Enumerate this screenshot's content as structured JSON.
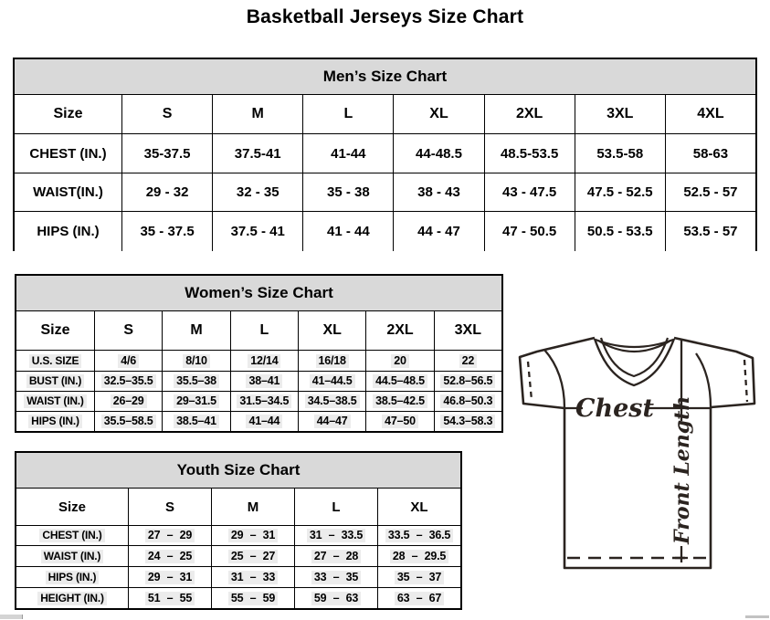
{
  "page": {
    "title": "Basketball Jerseys Size Chart"
  },
  "mens": {
    "title": "Men’s Size Chart",
    "size_label": "Size",
    "sizes": [
      "S",
      "M",
      "L",
      "XL",
      "2XL",
      "3XL",
      "4XL"
    ],
    "rows": [
      {
        "label": "CHEST (IN.)",
        "values": [
          "35-37.5",
          "37.5-41",
          "41-44",
          "44-48.5",
          "48.5-53.5",
          "53.5-58",
          "58-63"
        ]
      },
      {
        "label": "WAIST(IN.)",
        "values": [
          "29 - 32",
          "32 - 35",
          "35 - 38",
          "38 - 43",
          "43 - 47.5",
          "47.5 - 52.5",
          "52.5 - 57"
        ]
      },
      {
        "label": "HIPS (IN.)",
        "values": [
          "35 - 37.5",
          "37.5 - 41",
          "41 - 44",
          "44 - 47",
          "47 - 50.5",
          "50.5 - 53.5",
          "53.5 - 57"
        ]
      }
    ]
  },
  "womens": {
    "title": "Women’s Size Chart",
    "size_label": "Size",
    "sizes": [
      "S",
      "M",
      "L",
      "XL",
      "2XL",
      "3XL"
    ],
    "rows": [
      {
        "label": "U.S. SIZE",
        "values": [
          "4/6",
          "8/10",
          "12/14",
          "16/18",
          "20",
          "22"
        ]
      },
      {
        "label": "BUST (IN.)",
        "values": [
          "32.5–35.5",
          "35.5–38",
          "38–41",
          "41–44.5",
          "44.5–48.5",
          "52.8–56.5"
        ]
      },
      {
        "label": "WAIST (IN.)",
        "values": [
          "26–29",
          "29–31.5",
          "31.5–34.5",
          "34.5–38.5",
          "38.5–42.5",
          "46.8–50.3"
        ]
      },
      {
        "label": "HIPS (IN.)",
        "values": [
          "35.5–58.5",
          "38.5–41",
          "41–44",
          "44–47",
          "47–50",
          "54.3–58.3"
        ]
      }
    ]
  },
  "youth": {
    "title": "Youth Size Chart",
    "size_label": "Size",
    "sizes": [
      "S",
      "M",
      "L",
      "XL"
    ],
    "rows": [
      {
        "label": "CHEST (IN.)",
        "values": [
          "27 – 29",
          "29 – 31",
          "31 – 33.5",
          "33.5 – 36.5"
        ]
      },
      {
        "label": "WAIST (IN.)",
        "values": [
          "24 – 25",
          "25 – 27",
          "27 – 28",
          "28 – 29.5"
        ]
      },
      {
        "label": "HIPS (IN.)",
        "values": [
          "29 – 31",
          "31 – 33",
          "33 – 35",
          "35 – 37"
        ]
      },
      {
        "label": "HEIGHT (IN.)",
        "values": [
          "51 – 55",
          "55 – 59",
          "59 – 63",
          "63 – 67"
        ]
      }
    ]
  },
  "diagram": {
    "chest_label": "Chest",
    "front_length_label": "Front Length"
  },
  "colors": {
    "table_header_bg": "#d9d9d9",
    "table_border": "#000000",
    "cell_highlight": "#ececec",
    "jersey_stroke": "#2b2420",
    "scrollbar": "#d4d4d4"
  }
}
